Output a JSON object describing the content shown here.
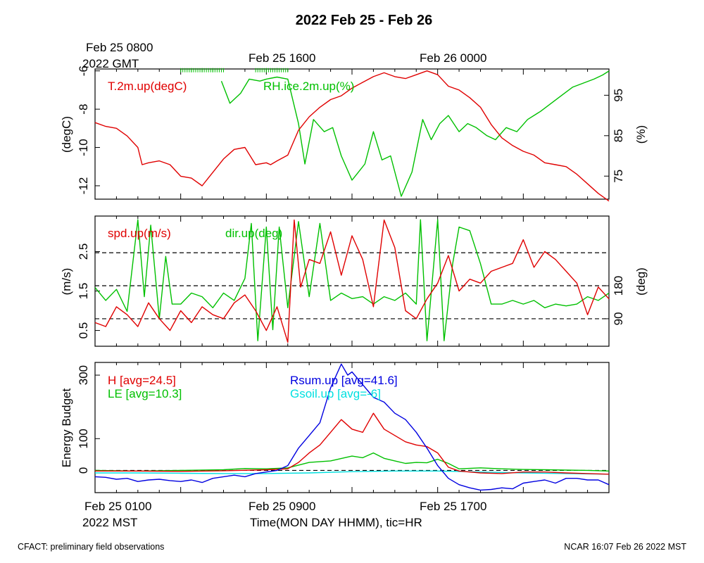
{
  "title": "2022 Feb 25 - Feb 26",
  "top_axis": {
    "labels": [
      "Feb 25 0800",
      "Feb 25 1600",
      "Feb 26 0000"
    ],
    "tz_label": "2022 GMT"
  },
  "bottom_axis": {
    "labels": [
      "Feb 25 0100",
      "Feb 25 0900",
      "Feb 25 1700"
    ],
    "tz_label": "2022 MST",
    "xlabel": "Time(MON DAY HHMM), tic=HR"
  },
  "footer": {
    "left": "CFACT: preliminary field observations",
    "right": "NCAR 16:07 Feb 26 2022 MST"
  },
  "colors": {
    "red": "#e00000",
    "green": "#00c000",
    "blue": "#0000e0",
    "cyan": "#00e0e0"
  },
  "chart_data": [
    {
      "type": "line",
      "x_unit": "hours since Feb 25 0000 MST",
      "xlim": [
        0,
        24
      ],
      "ylabel_left": "(degC)",
      "ylabel_right": "(%)",
      "ylim_left": [
        -12.7,
        -5.9
      ],
      "yticks_left": [
        -6,
        -8,
        -10,
        -12
      ],
      "ylim_right": [
        69.3,
        101.5
      ],
      "yticks_right": [
        95,
        85,
        75
      ],
      "series": [
        {
          "name": "T.2m.up(degC)",
          "axis": "left",
          "color": "red",
          "x": [
            0,
            0.5,
            1,
            1.5,
            2,
            2.2,
            2.5,
            3,
            3.5,
            4,
            4.5,
            5,
            5.5,
            6,
            6.5,
            7,
            7.5,
            8,
            8.2,
            8.5,
            9,
            9.5,
            10,
            10.5,
            11,
            11.5,
            12,
            12.5,
            13,
            13.5,
            14,
            14.5,
            15,
            15.5,
            16,
            16.5,
            17,
            17.5,
            18,
            18.5,
            19,
            19.5,
            20,
            20.5,
            21,
            21.5,
            22,
            22.5,
            23,
            23.5,
            24
          ],
          "y": [
            -8.7,
            -8.9,
            -9.0,
            -9.4,
            -10.0,
            -10.9,
            -10.8,
            -10.7,
            -10.9,
            -11.5,
            -11.6,
            -12.0,
            -11.3,
            -10.6,
            -10.1,
            -10.0,
            -10.9,
            -10.8,
            -10.9,
            -10.7,
            -10.4,
            -9.1,
            -8.4,
            -7.9,
            -7.5,
            -7.3,
            -6.9,
            -6.6,
            -6.3,
            -6.1,
            -6.3,
            -6.4,
            -6.2,
            -6.0,
            -6.2,
            -6.8,
            -7.0,
            -7.4,
            -7.9,
            -8.8,
            -9.5,
            -9.9,
            -10.2,
            -10.4,
            -10.8,
            -10.9,
            -11.0,
            -11.4,
            -11.9,
            -12.4,
            -12.8
          ]
        },
        {
          "name": "RH.ice.2m.up(%)",
          "axis": "right",
          "color": "green",
          "x": [
            5.9,
            6.3,
            6.8,
            7.2,
            7.7,
            8.0,
            8.5,
            9.0,
            9.5,
            9.8,
            10.2,
            10.7,
            11.1,
            11.5,
            12.0,
            12.6,
            13.0,
            13.4,
            13.8,
            14.3,
            14.8,
            15.3,
            15.7,
            16.1,
            16.5,
            17.0,
            17.4,
            17.8,
            18.3,
            18.7,
            19.2,
            19.7,
            20.2,
            20.8,
            21.3,
            21.8,
            22.3,
            22.8,
            23.3,
            23.7,
            24.0
          ],
          "y": [
            98.5,
            93,
            95.5,
            99,
            98.5,
            99,
            99.5,
            99,
            88,
            78,
            89,
            86,
            87,
            80,
            74,
            78,
            86,
            79,
            80,
            70,
            76,
            89,
            84,
            88,
            90,
            86,
            88,
            87,
            85,
            84,
            87,
            86,
            89,
            91,
            93,
            95,
            97,
            98,
            99,
            100,
            101
          ]
        },
        {
          "name": "RH.ice.2m.up(%) saturation marks",
          "axis": "right",
          "color": "green",
          "x": [
            4.0,
            4.5,
            5.0,
            5.5,
            6.0,
            7.5,
            8.0,
            8.5,
            9.0
          ],
          "y": [
            101.2,
            101.2,
            101.2,
            101.2,
            101.2,
            101.2,
            101.2,
            101.2,
            101.2
          ]
        }
      ]
    },
    {
      "type": "line",
      "x_unit": "hours since Feb 25 0000 MST",
      "xlim": [
        0,
        24
      ],
      "ylabel_left": "(m/s)",
      "ylabel_right": "(deg)",
      "ylim_left": [
        0.1,
        3.4
      ],
      "yticks_left": [
        0.5,
        1.5,
        2.5
      ],
      "ylim_right": [
        15,
        370
      ],
      "yticks_right": [
        90,
        180
      ],
      "hlines_right": [
        90,
        180,
        270
      ],
      "series": [
        {
          "name": "spd.up(m/s)",
          "axis": "left",
          "color": "red",
          "x": [
            0,
            0.5,
            1,
            1.5,
            2,
            2.5,
            3,
            3.5,
            4,
            4.5,
            5,
            5.5,
            6,
            6.5,
            7,
            7.5,
            8,
            8.5,
            9,
            9.3,
            9.6,
            10,
            10.5,
            11,
            11.5,
            12,
            12.5,
            13,
            13.5,
            14,
            14.5,
            15,
            15.5,
            16,
            16.5,
            17,
            17.5,
            18,
            18.5,
            19,
            19.5,
            20,
            20.5,
            21,
            21.5,
            22,
            22.5,
            23,
            23.5,
            24
          ],
          "y": [
            0.7,
            0.6,
            1.1,
            0.9,
            0.6,
            1.2,
            0.8,
            0.5,
            1.0,
            0.7,
            1.1,
            0.9,
            0.8,
            1.2,
            1.4,
            1.0,
            0.5,
            1.1,
            0.2,
            3.3,
            1.6,
            2.3,
            2.2,
            3.0,
            1.9,
            2.9,
            2.3,
            1.1,
            3.3,
            2.6,
            1.0,
            0.8,
            1.3,
            1.7,
            2.4,
            1.5,
            1.8,
            1.7,
            2.0,
            2.1,
            2.2,
            2.8,
            2.1,
            2.5,
            2.3,
            2.0,
            1.7,
            0.9,
            1.6,
            1.3
          ]
        },
        {
          "name": "dir.up(deg)",
          "axis": "left_deg",
          "color": "green",
          "x": [
            0,
            0.5,
            1,
            1.5,
            2,
            2.3,
            2.6,
            3,
            3.3,
            3.6,
            4,
            4.5,
            5,
            5.5,
            6,
            6.5,
            7,
            7.3,
            7.6,
            8,
            8.3,
            8.6,
            9,
            9.5,
            10,
            10.5,
            11,
            11.5,
            12,
            12.5,
            13,
            13.5,
            14,
            14.5,
            15,
            15.2,
            15.5,
            16,
            16.3,
            16.7,
            17,
            17.5,
            18,
            18.5,
            19,
            19.5,
            20,
            20.5,
            21,
            21.5,
            22,
            22.5,
            23,
            23.5,
            24
          ],
          "y": [
            175,
            140,
            170,
            110,
            360,
            150,
            345,
            90,
            260,
            130,
            130,
            160,
            150,
            120,
            160,
            140,
            200,
            350,
            30,
            340,
            60,
            340,
            120,
            355,
            150,
            350,
            140,
            160,
            145,
            150,
            130,
            150,
            140,
            160,
            130,
            360,
            30,
            360,
            30,
            240,
            340,
            330,
            240,
            130,
            130,
            140,
            130,
            140,
            120,
            130,
            125,
            130,
            150,
            140,
            160
          ]
        }
      ]
    },
    {
      "type": "line",
      "x_unit": "hours since Feb 25 0000 MST",
      "xlim": [
        0,
        24
      ],
      "ylabel_left": "Energy Budget",
      "ylim": [
        -70,
        340
      ],
      "yticks": [
        0,
        100,
        300
      ],
      "hline": 0,
      "series": [
        {
          "name": "H [avg=24.5]",
          "color": "red",
          "x": [
            0,
            2,
            4,
            6,
            8,
            9,
            9.5,
            10,
            10.5,
            11,
            11.5,
            12,
            12.5,
            13,
            13.5,
            14,
            14.5,
            15,
            15.5,
            16,
            16.5,
            17,
            17.5,
            18,
            19,
            20,
            21,
            22,
            23,
            24
          ],
          "y": [
            -2,
            -2,
            -3,
            -1,
            2,
            5,
            25,
            55,
            80,
            120,
            160,
            130,
            120,
            180,
            130,
            110,
            90,
            80,
            75,
            55,
            10,
            -2,
            -5,
            -8,
            -10,
            -5,
            -5,
            -8,
            -10,
            -12
          ]
        },
        {
          "name": "LE [avg=10.3]",
          "color": "green",
          "x": [
            0,
            2,
            4,
            6,
            7,
            8,
            9,
            10,
            11,
            12,
            12.5,
            13,
            13.5,
            14,
            14.5,
            15,
            15.5,
            16,
            16.5,
            17,
            18,
            19,
            20,
            21,
            22,
            23,
            24
          ],
          "y": [
            0,
            -2,
            0,
            2,
            6,
            5,
            8,
            25,
            30,
            45,
            40,
            55,
            38,
            30,
            22,
            25,
            24,
            35,
            22,
            5,
            8,
            5,
            3,
            2,
            1,
            0,
            -2
          ]
        },
        {
          "name": "Rsum.up [avg=41.6]",
          "color": "blue",
          "x": [
            0,
            0.5,
            1,
            1.5,
            2,
            2.5,
            3,
            3.5,
            4,
            4.5,
            5,
            5.5,
            6,
            6.5,
            7,
            7.5,
            8,
            8.5,
            9,
            9.5,
            10,
            10.5,
            11,
            11.5,
            11.8,
            12,
            12.5,
            13,
            13.5,
            14,
            14.5,
            15,
            15.5,
            16,
            16.5,
            17,
            17.5,
            18,
            18.5,
            19,
            19.5,
            20,
            20.5,
            21,
            21.5,
            22,
            22.5,
            23,
            23.5,
            24
          ],
          "y": [
            -20,
            -22,
            -28,
            -25,
            -35,
            -30,
            -28,
            -32,
            -35,
            -30,
            -38,
            -25,
            -20,
            -15,
            -20,
            -10,
            -5,
            0,
            15,
            70,
            110,
            150,
            260,
            335,
            300,
            310,
            270,
            230,
            215,
            180,
            160,
            120,
            70,
            15,
            -25,
            -45,
            -55,
            -62,
            -60,
            -55,
            -58,
            -40,
            -35,
            -30,
            -40,
            -25,
            -25,
            -30,
            -30,
            -45
          ]
        },
        {
          "name": "Gsoil.up [avg=-6]",
          "color": "cyan",
          "x": [
            0,
            2,
            4,
            6,
            8,
            10,
            12,
            14,
            16,
            18,
            20,
            22,
            24
          ],
          "y": [
            -8,
            -8,
            -9,
            -10,
            -10,
            -8,
            -4,
            -2,
            -2,
            -5,
            -8,
            -10,
            -12
          ]
        }
      ]
    }
  ]
}
